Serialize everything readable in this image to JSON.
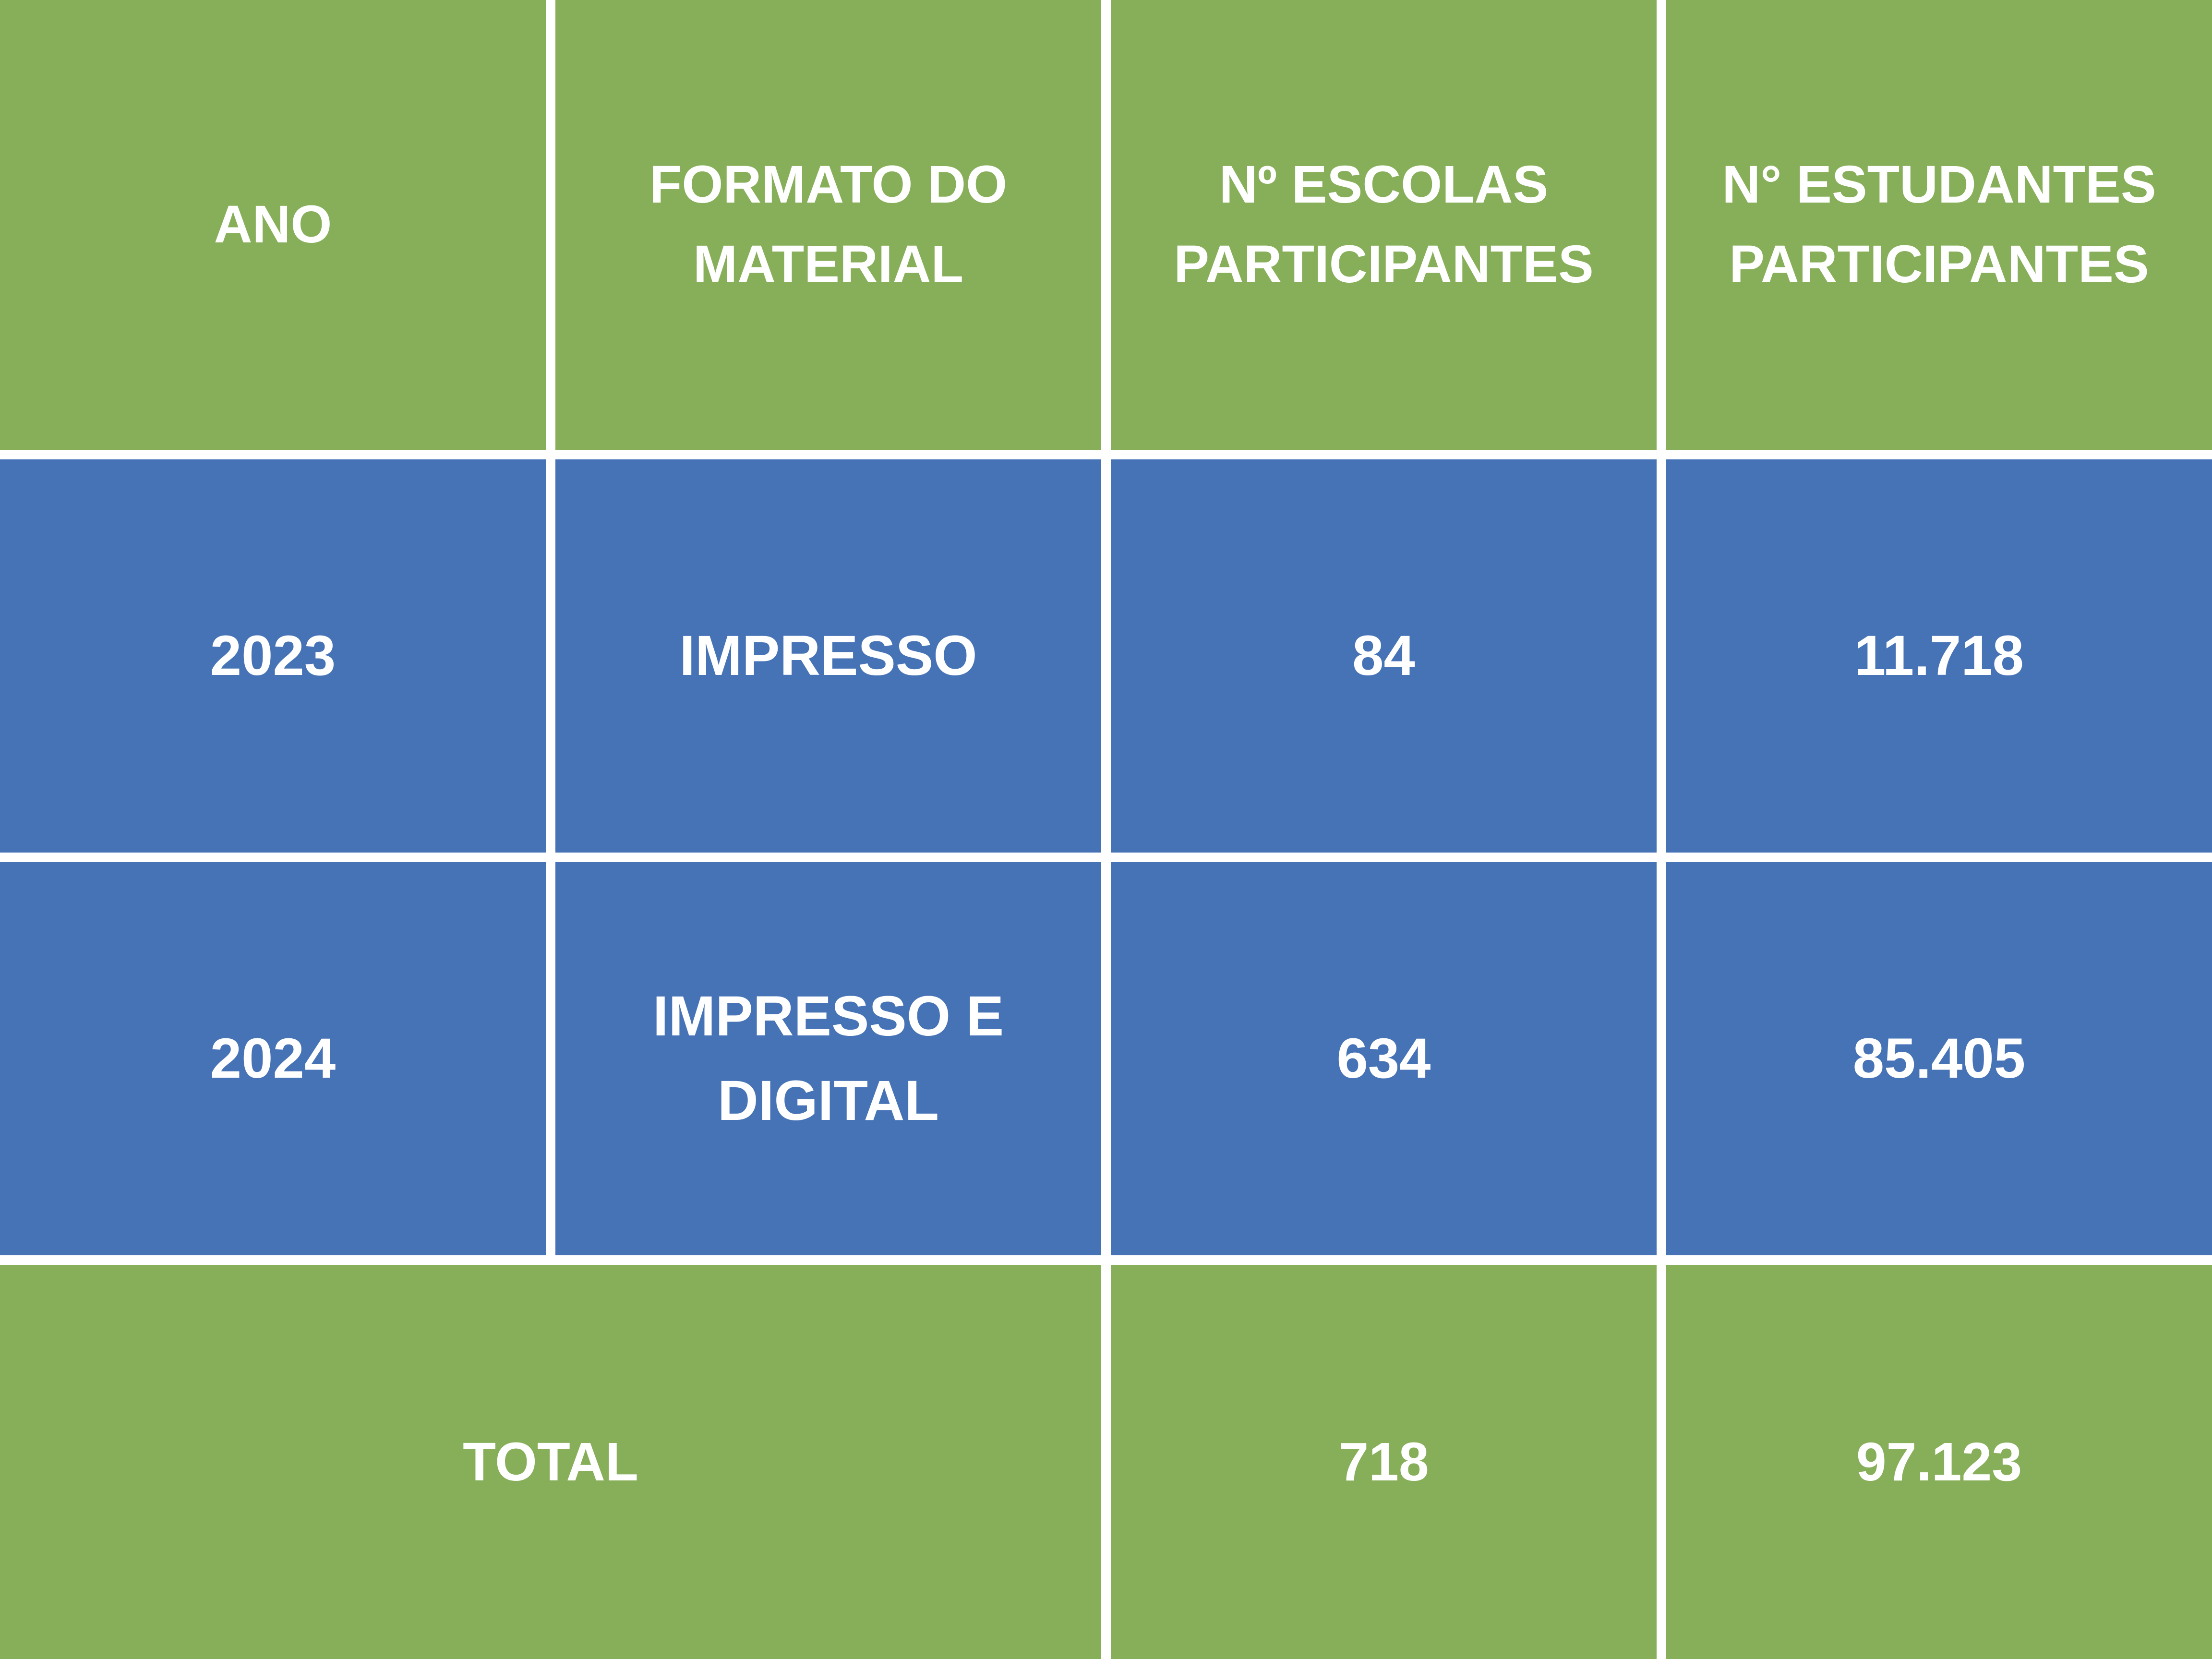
{
  "table": {
    "columns": [
      "ANO",
      "FORMATO DO\nMATERIAL",
      "Nº ESCOLAS\nPARTICIPANTES",
      "N° ESTUDANTES\nPARTICIPANTES"
    ],
    "rows": [
      {
        "ano": "2023",
        "formato": "IMPRESSO",
        "escolas": "84",
        "estudantes": "11.718"
      },
      {
        "ano": "2024",
        "formato": "IMPRESSO E\nDIGITAL",
        "escolas": "634",
        "estudantes": "85.405"
      }
    ],
    "total": {
      "label": "TOTAL",
      "escolas": "718",
      "estudantes": "97.123"
    }
  },
  "chart_data": {
    "type": "table",
    "title": "",
    "columns": [
      "ANO",
      "FORMATO DO MATERIAL",
      "Nº ESCOLAS PARTICIPANTES",
      "N° ESTUDANTES PARTICIPANTES"
    ],
    "rows": [
      [
        "2023",
        "IMPRESSO",
        84,
        11718
      ],
      [
        "2024",
        "IMPRESSO E DIGITAL",
        634,
        85405
      ],
      [
        "TOTAL",
        "",
        718,
        97123
      ]
    ],
    "display_number_format": "pt-BR thousands separator (.)"
  },
  "colors": {
    "header_green": "#87AF59",
    "row_blue": "#4672B6",
    "gap_white": "#FFFFFF",
    "text_white": "#FFFFFF"
  }
}
